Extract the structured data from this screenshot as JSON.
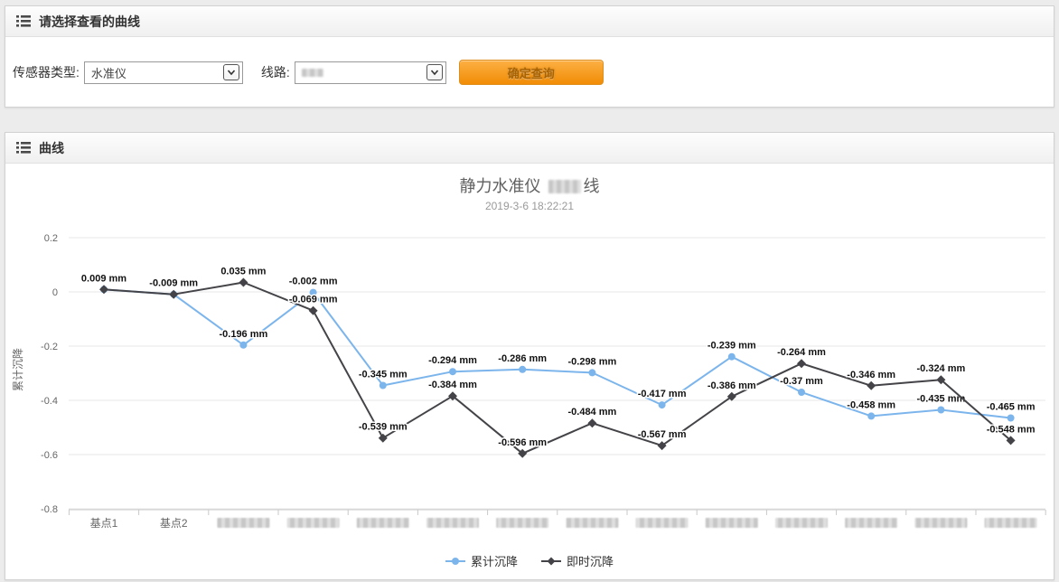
{
  "filter_panel": {
    "header_title": "请选择查看的曲线",
    "sensor_type": {
      "label": "传感器类型:",
      "value": "水准仪"
    },
    "line": {
      "label": "线路:",
      "value_redacted": true
    },
    "submit_label": "确定查询"
  },
  "chart_panel": {
    "header_title": "曲线"
  },
  "chart_data": {
    "type": "line",
    "title": {
      "prefix": "静力水准仪 ",
      "redacted_middle": true,
      "suffix": "线"
    },
    "subtitle": "2019-3-6 18:22:21",
    "ylabel": "累计沉降",
    "unit": "mm",
    "ylim": [
      -0.8,
      0.2
    ],
    "yticks": [
      0.2,
      0,
      -0.2,
      -0.4,
      -0.6,
      -0.8
    ],
    "categories": [
      "基点1",
      "基点2"
    ],
    "redacted_category_count": 12,
    "grid": true,
    "legend_position": "bottom",
    "series": [
      {
        "name": "累计沉降",
        "color": "#7cb5ec",
        "marker": "circle",
        "values": [
          0.009,
          -0.009,
          -0.196,
          -0.002,
          -0.345,
          -0.294,
          -0.286,
          -0.298,
          -0.417,
          -0.239,
          -0.37,
          -0.458,
          -0.435,
          -0.465
        ],
        "labels": [
          "0.009 mm",
          "-0.009 mm",
          "-0.196 mm",
          "-0.002 mm",
          "-0.345 mm",
          "-0.294 mm",
          "-0.286 mm",
          "-0.298 mm",
          "-0.417 mm",
          "-0.239 mm",
          "-0.37 mm",
          "-0.458 mm",
          "-0.435 mm",
          "-0.465 mm"
        ]
      },
      {
        "name": "即时沉降",
        "color": "#434348",
        "marker": "diamond",
        "values": [
          0.009,
          -0.009,
          0.035,
          -0.069,
          -0.539,
          -0.384,
          -0.596,
          -0.484,
          -0.567,
          -0.386,
          -0.264,
          -0.346,
          -0.324,
          -0.548
        ],
        "labels": [
          null,
          null,
          "0.035 mm",
          "-0.069 mm",
          "-0.539 mm",
          "-0.384 mm",
          "-0.596 mm",
          "-0.484 mm",
          "-0.567 mm",
          "-0.386 mm",
          "-0.264 mm",
          "-0.346 mm",
          "-0.324 mm",
          "-0.548 mm"
        ]
      }
    ]
  }
}
